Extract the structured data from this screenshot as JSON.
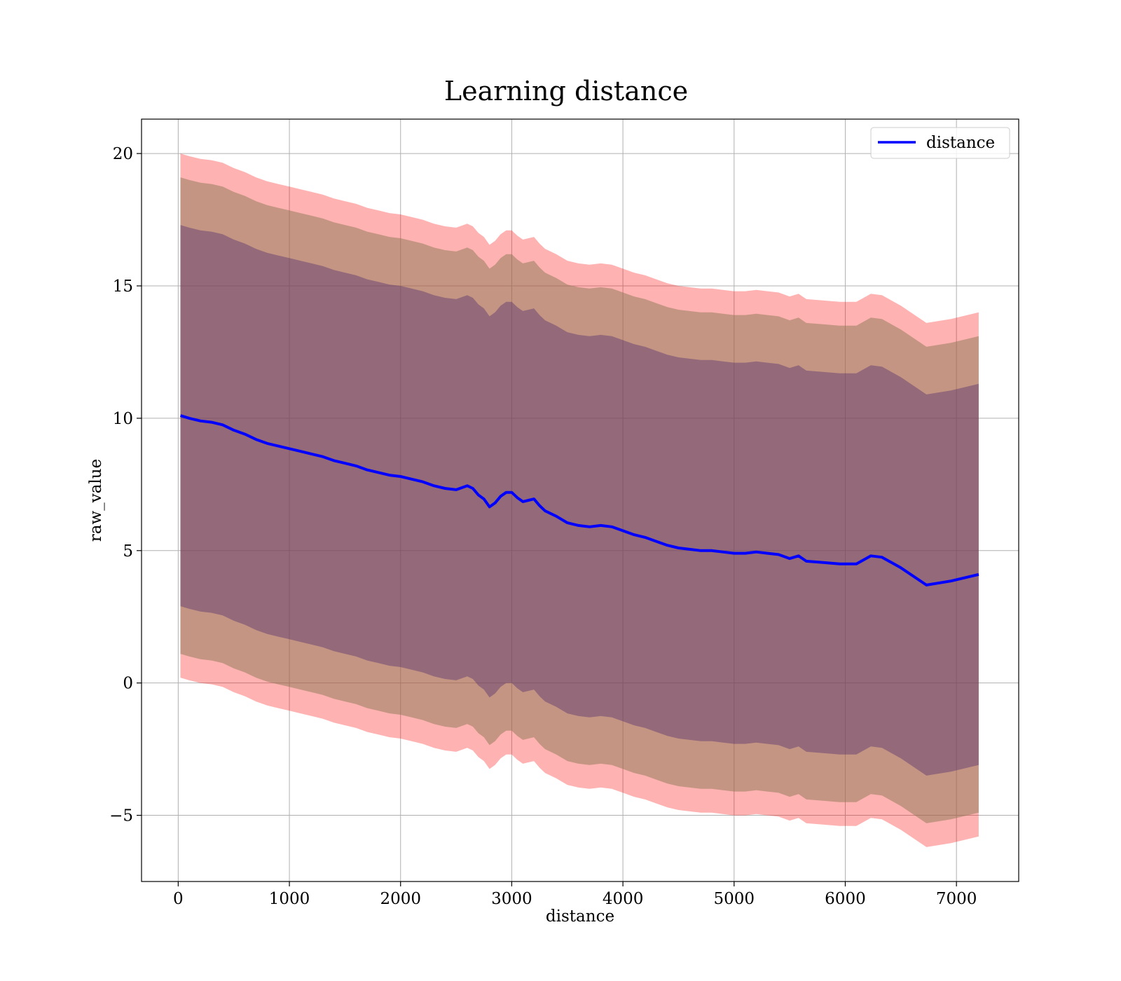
{
  "chart_data": {
    "type": "line",
    "title": "Learning distance",
    "xlabel": "distance",
    "ylabel": "raw_value",
    "xlim": [
      -330,
      7560
    ],
    "ylim": [
      -7.5,
      21.3
    ],
    "x_ticks": [
      0,
      1000,
      2000,
      3000,
      4000,
      5000,
      6000,
      7000
    ],
    "x_tick_labels": [
      "0",
      "1000",
      "2000",
      "3000",
      "4000",
      "5000",
      "6000",
      "7000"
    ],
    "y_ticks": [
      -5,
      0,
      5,
      10,
      15,
      20
    ],
    "y_tick_labels": [
      "−5",
      "0",
      "5",
      "10",
      "15",
      "20"
    ],
    "grid": true,
    "legend": {
      "placement": "top-right",
      "entries": [
        "distance"
      ]
    },
    "series": [
      {
        "name": "distance",
        "color": "#0000ff",
        "x": [
          20,
          100,
          200,
          300,
          400,
          500,
          600,
          700,
          800,
          900,
          1000,
          1100,
          1200,
          1300,
          1400,
          1500,
          1600,
          1700,
          1800,
          1900,
          2000,
          2100,
          2200,
          2300,
          2400,
          2500,
          2600,
          2650,
          2700,
          2750,
          2800,
          2850,
          2900,
          2950,
          3000,
          3050,
          3100,
          3150,
          3200,
          3250,
          3300,
          3400,
          3500,
          3600,
          3700,
          3800,
          3900,
          4000,
          4100,
          4200,
          4300,
          4400,
          4500,
          4600,
          4700,
          4800,
          4900,
          5000,
          5100,
          5200,
          5300,
          5400,
          5500,
          5580,
          5650,
          5800,
          5950,
          6100,
          6230,
          6330,
          6500,
          6730,
          6950,
          7200
        ],
        "values": [
          10.1,
          10.0,
          9.9,
          9.85,
          9.75,
          9.55,
          9.4,
          9.2,
          9.05,
          8.95,
          8.85,
          8.75,
          8.65,
          8.55,
          8.4,
          8.3,
          8.2,
          8.05,
          7.95,
          7.85,
          7.8,
          7.7,
          7.6,
          7.45,
          7.35,
          7.3,
          7.45,
          7.35,
          7.1,
          6.95,
          6.65,
          6.8,
          7.05,
          7.2,
          7.2,
          7.0,
          6.85,
          6.9,
          6.95,
          6.7,
          6.5,
          6.3,
          6.05,
          5.95,
          5.9,
          5.95,
          5.9,
          5.75,
          5.6,
          5.5,
          5.35,
          5.2,
          5.1,
          5.05,
          5.0,
          5.0,
          4.95,
          4.9,
          4.9,
          4.95,
          4.9,
          4.85,
          4.7,
          4.8,
          4.6,
          4.55,
          4.5,
          4.5,
          4.8,
          4.75,
          4.35,
          3.7,
          3.85,
          4.1
        ]
      }
    ],
    "bands": [
      {
        "color": "#ff0000",
        "opacity": 0.3,
        "offsets": [
          9.9,
          9.9,
          9.9,
          9.9,
          9.9,
          9.9,
          9.9,
          9.9,
          9.9,
          9.9,
          9.9,
          9.9,
          9.9,
          9.9,
          9.9,
          9.9,
          9.9,
          9.9,
          9.9,
          9.9,
          9.9,
          9.9,
          9.9,
          9.9,
          9.9,
          9.9,
          9.9,
          9.9,
          9.9,
          9.9,
          9.9,
          9.9,
          9.9,
          9.9,
          9.9,
          9.9,
          9.9,
          9.9,
          9.9,
          9.9,
          9.9,
          9.9,
          9.9,
          9.9,
          9.9,
          9.9,
          9.9,
          9.9,
          9.9,
          9.9,
          9.9,
          9.9,
          9.9,
          9.9,
          9.9,
          9.9,
          9.9,
          9.9,
          9.9,
          9.9,
          9.9,
          9.9,
          9.9,
          9.9,
          9.9,
          9.9,
          9.9,
          9.9,
          9.9,
          9.9,
          9.9,
          9.9,
          9.9,
          9.9
        ]
      },
      {
        "color": "#8c7853",
        "opacity": 0.5,
        "offsets": [
          9.0,
          9.0,
          9.0,
          9.0,
          9.0,
          9.0,
          9.0,
          9.0,
          9.0,
          9.0,
          9.0,
          9.0,
          9.0,
          9.0,
          9.0,
          9.0,
          9.0,
          9.0,
          9.0,
          9.0,
          9.0,
          9.0,
          9.0,
          9.0,
          9.0,
          9.0,
          9.0,
          9.0,
          9.0,
          9.0,
          9.0,
          9.0,
          9.0,
          9.0,
          9.0,
          9.0,
          9.0,
          9.0,
          9.0,
          9.0,
          9.0,
          9.0,
          9.0,
          9.0,
          9.0,
          9.0,
          9.0,
          9.0,
          9.0,
          9.0,
          9.0,
          9.0,
          9.0,
          9.0,
          9.0,
          9.0,
          9.0,
          9.0,
          9.0,
          9.0,
          9.0,
          9.0,
          9.0,
          9.0,
          9.0,
          9.0,
          9.0,
          9.0,
          9.0,
          9.0,
          9.0,
          9.0,
          9.0,
          9.0
        ]
      },
      {
        "color": "#4b2a6f",
        "opacity": 0.4,
        "offsets": [
          7.2,
          7.2,
          7.2,
          7.2,
          7.2,
          7.2,
          7.2,
          7.2,
          7.2,
          7.2,
          7.2,
          7.2,
          7.2,
          7.2,
          7.2,
          7.2,
          7.2,
          7.2,
          7.2,
          7.2,
          7.2,
          7.2,
          7.2,
          7.2,
          7.2,
          7.2,
          7.2,
          7.2,
          7.2,
          7.2,
          7.2,
          7.2,
          7.2,
          7.2,
          7.2,
          7.2,
          7.2,
          7.2,
          7.2,
          7.2,
          7.2,
          7.2,
          7.2,
          7.2,
          7.2,
          7.2,
          7.2,
          7.2,
          7.2,
          7.2,
          7.2,
          7.2,
          7.2,
          7.2,
          7.2,
          7.2,
          7.2,
          7.2,
          7.2,
          7.2,
          7.2,
          7.2,
          7.2,
          7.2,
          7.2,
          7.2,
          7.2,
          7.2,
          7.2,
          7.2,
          7.2,
          7.2,
          7.2,
          7.2
        ]
      }
    ]
  }
}
